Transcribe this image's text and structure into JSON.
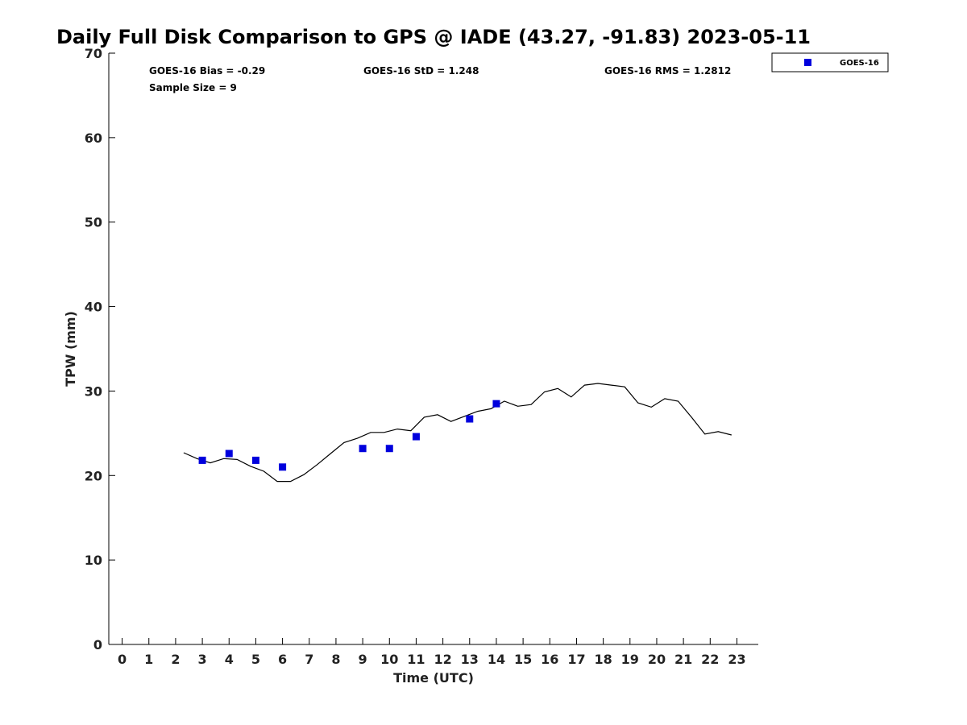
{
  "chart_data": {
    "type": "scatter",
    "title": "Daily Full Disk Comparison to GPS @ IADE (43.27, -91.83) 2023-05-11",
    "xlabel": "Time (UTC)",
    "ylabel": "TPW (mm)",
    "xlim": [
      -0.5,
      23.8
    ],
    "ylim": [
      0,
      70
    ],
    "x_ticks": [
      0,
      1,
      2,
      3,
      4,
      5,
      6,
      7,
      8,
      9,
      10,
      11,
      12,
      13,
      14,
      15,
      16,
      17,
      18,
      19,
      20,
      21,
      22,
      23
    ],
    "y_ticks": [
      0,
      10,
      20,
      30,
      40,
      50,
      60,
      70
    ],
    "grid": false,
    "legend_position": "top-right",
    "stats": [
      "GOES-16 Bias = -0.29",
      "GOES-16 StD = 1.248",
      "GOES-16 RMS = 1.2812",
      "Sample Size = 9"
    ],
    "series": [
      {
        "name": "GOES-16",
        "type": "scatter",
        "marker": "square",
        "color": "#0000dd",
        "x": [
          3,
          4,
          5,
          6,
          9,
          10,
          11,
          13,
          14
        ],
        "y": [
          21.8,
          22.6,
          21.8,
          21.0,
          23.2,
          23.2,
          24.6,
          26.7,
          28.5
        ]
      },
      {
        "type": "line",
        "color": "#000000",
        "x": [
          2.3,
          2.8,
          3.3,
          3.8,
          4.3,
          4.8,
          5.3,
          5.8,
          6.3,
          6.8,
          7.3,
          7.8,
          8.3,
          8.8,
          9.3,
          9.8,
          10.3,
          10.8,
          11.3,
          11.8,
          12.3,
          12.8,
          13.3,
          13.8,
          14.3,
          14.8,
          15.3,
          15.8,
          16.3,
          16.8,
          17.3,
          17.8,
          18.3,
          18.8,
          19.3,
          19.8,
          20.3,
          20.8,
          21.3,
          21.8,
          22.3,
          22.8
        ],
        "y": [
          22.7,
          22.0,
          21.5,
          22.0,
          21.9,
          21.1,
          20.5,
          19.3,
          19.3,
          20.1,
          21.3,
          22.6,
          23.9,
          24.4,
          25.1,
          25.1,
          25.5,
          25.3,
          26.9,
          27.2,
          26.4,
          27.0,
          27.6,
          27.9,
          28.8,
          28.2,
          28.4,
          29.9,
          30.3,
          29.3,
          30.7,
          30.9,
          30.7,
          30.5,
          28.6,
          28.1,
          29.1,
          28.8,
          26.9,
          24.9,
          25.2,
          24.8
        ]
      }
    ]
  }
}
